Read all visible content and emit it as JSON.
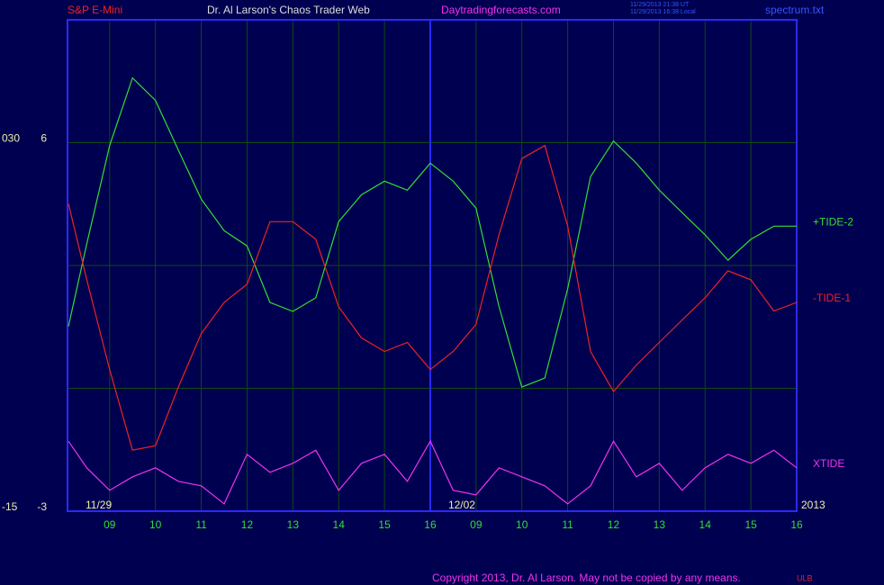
{
  "header": {
    "symbol": "S&P E-Mini",
    "site": "Dr. Al Larson's Chaos Trader Web",
    "url": "Daytradingforecasts.com",
    "stamp_ut": "11/29/2013 21:38 UT",
    "stamp_local": "11/29/2013 16:38 Local",
    "file": "spectrum.txt"
  },
  "footer": {
    "copyright": "Copyright 2013, Dr. Al Larson. May not be copied by any means.",
    "mark": "ULB"
  },
  "chart_data": {
    "type": "line",
    "x": [
      0.1,
      0.5,
      1,
      1.5,
      2,
      2.5,
      3,
      3.5,
      4,
      4.5,
      5,
      5.5,
      6,
      6.5,
      7,
      7.5,
      8,
      8.5,
      9,
      9.5,
      10,
      10.5,
      11,
      11.5,
      12,
      12.5,
      13,
      13.5,
      14,
      14.5,
      15,
      15.5,
      16
    ],
    "xlim": [
      0.08,
      16
    ],
    "xticks": [
      {
        "value": 1,
        "label": "09"
      },
      {
        "value": 2,
        "label": "10"
      },
      {
        "value": 3,
        "label": "11"
      },
      {
        "value": 4,
        "label": "12"
      },
      {
        "value": 5,
        "label": "13"
      },
      {
        "value": 6,
        "label": "14"
      },
      {
        "value": 7,
        "label": "15"
      },
      {
        "value": 8,
        "label": "16"
      },
      {
        "value": 9,
        "label": "09"
      },
      {
        "value": 10,
        "label": "10"
      },
      {
        "value": 11,
        "label": "11"
      },
      {
        "value": 12,
        "label": "12"
      },
      {
        "value": 13,
        "label": "13"
      },
      {
        "value": 14,
        "label": "14"
      },
      {
        "value": 15,
        "label": "15"
      },
      {
        "value": 16,
        "label": "16"
      }
    ],
    "date_labels": [
      {
        "label": "11/29",
        "x": 0.08
      },
      {
        "label": "12/02",
        "x": 8
      },
      {
        "label": "2013",
        "x": 16
      }
    ],
    "ylim": [
      -3,
      9
    ],
    "yticks": [
      -3,
      0,
      3,
      6
    ],
    "ytick_labels_shown": [
      {
        "value": 6,
        "label": "6"
      },
      {
        "value": -3,
        "label": "-3"
      }
    ],
    "y2lim": [
      -15,
      45
    ],
    "y2ticks": [
      {
        "value": 30,
        "label": "030"
      },
      -15
    ],
    "grid": true,
    "series": [
      {
        "name": "+TIDE-2",
        "color": "#33dd33",
        "values": [
          1.51,
          3.53,
          5.93,
          7.58,
          7.03,
          5.82,
          4.62,
          3.85,
          3.48,
          2.1,
          1.88,
          2.21,
          4.07,
          4.73,
          5.06,
          4.84,
          5.5,
          5.06,
          4.4,
          2.0,
          0.03,
          0.25,
          2.43,
          5.17,
          6.04,
          5.5,
          4.84,
          4.29,
          3.75,
          3.13,
          3.64,
          3.96,
          3.96
        ]
      },
      {
        "name": "-TIDE-1",
        "color": "#ee2222",
        "values": [
          4.51,
          2.65,
          0.46,
          -1.51,
          -1.4,
          0.03,
          1.34,
          2.1,
          2.54,
          4.07,
          4.07,
          3.64,
          1.99,
          1.23,
          0.9,
          1.12,
          0.46,
          0.9,
          1.56,
          3.75,
          5.61,
          5.93,
          3.96,
          0.9,
          -0.08,
          0.57,
          1.12,
          1.67,
          2.21,
          2.87,
          2.65,
          1.89,
          2.1
        ]
      },
      {
        "name": "XTIDE",
        "color": "#ee33ee",
        "values": [
          -1.29,
          -1.94,
          -2.49,
          -2.16,
          -1.94,
          -2.27,
          -2.38,
          -2.82,
          -1.61,
          -2.05,
          -1.83,
          -1.51,
          -2.49,
          -1.83,
          -1.61,
          -2.27,
          -1.29,
          -2.49,
          -2.6,
          -1.94,
          -2.16,
          -2.38,
          -2.82,
          -2.38,
          -1.29,
          -2.16,
          -1.83,
          -2.49,
          -1.94,
          -1.61,
          -1.83,
          -1.51,
          -1.94
        ]
      }
    ]
  }
}
